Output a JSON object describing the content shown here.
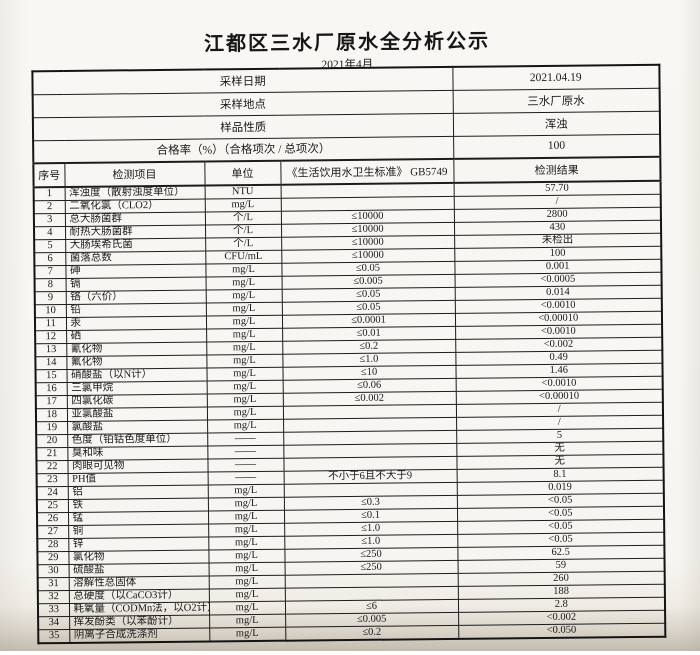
{
  "title": "江都区三水厂原水全分析公示",
  "subtitle": "2021年4月",
  "info_rows": [
    {
      "label": "采样日期",
      "value": "2021.04.19"
    },
    {
      "label": "采样地点",
      "value": "三水厂原水"
    },
    {
      "label": "样品性质",
      "value": "浑浊"
    },
    {
      "label": "合格率（%）（合格项次 / 总项次）",
      "value": "100"
    }
  ],
  "columns": [
    "序号",
    "检测项目",
    "单位",
    "《生活饮用水卫生标准》 GB5749",
    "检测结果"
  ],
  "rows": [
    [
      "1",
      "浑浊度（散射浊度单位）",
      "NTU",
      "",
      "57.70"
    ],
    [
      "2",
      "二氧化氯（CLO2）",
      "mg/L",
      "",
      "/"
    ],
    [
      "3",
      "总大肠菌群",
      "个/L",
      "≤10000",
      "2800"
    ],
    [
      "4",
      "耐热大肠菌群",
      "个/L",
      "≤10000",
      "430"
    ],
    [
      "5",
      "大肠埃希氏菌",
      "个/L",
      "≤10000",
      "未检出"
    ],
    [
      "6",
      "菌落总数",
      "CFU/mL",
      "≤10000",
      "100"
    ],
    [
      "7",
      "砷",
      "mg/L",
      "≤0.05",
      "0.001"
    ],
    [
      "8",
      "镉",
      "mg/L",
      "≤0.005",
      "<0.0005"
    ],
    [
      "9",
      "铬（六价）",
      "mg/L",
      "≤0.05",
      "0.014"
    ],
    [
      "10",
      "铅",
      "mg/L",
      "≤0.05",
      "<0.0010"
    ],
    [
      "11",
      "汞",
      "mg/L",
      "≤0.0001",
      "<0.00010"
    ],
    [
      "12",
      "硒",
      "mg/L",
      "≤0.01",
      "<0.0010"
    ],
    [
      "13",
      "氰化物",
      "mg/L",
      "≤0.2",
      "<0.002"
    ],
    [
      "14",
      "氟化物",
      "mg/L",
      "≤1.0",
      "0.49"
    ],
    [
      "15",
      "硝酸盐（以N计）",
      "mg/L",
      "≤10",
      "1.46"
    ],
    [
      "16",
      "三氯甲烷",
      "mg/L",
      "≤0.06",
      "<0.0010"
    ],
    [
      "17",
      "四氯化碳",
      "mg/L",
      "≤0.002",
      "<0.00010"
    ],
    [
      "18",
      "亚氯酸盐",
      "mg/L",
      "",
      "/"
    ],
    [
      "19",
      "氯酸盐",
      "mg/L",
      "",
      "/"
    ],
    [
      "20",
      "色度（铂钴色度单位）",
      "——",
      "",
      "5"
    ],
    [
      "21",
      "臭和味",
      "——",
      "",
      "无"
    ],
    [
      "22",
      "肉眼可见物",
      "——",
      "",
      "无"
    ],
    [
      "23",
      "PH值",
      "——",
      "不小于6且不大于9",
      "8.1"
    ],
    [
      "24",
      "铝",
      "mg/L",
      "",
      "0.019"
    ],
    [
      "25",
      "铁",
      "mg/L",
      "≤0.3",
      "<0.05"
    ],
    [
      "26",
      "锰",
      "mg/L",
      "≤0.1",
      "<0.05"
    ],
    [
      "27",
      "铜",
      "mg/L",
      "≤1.0",
      "<0.05"
    ],
    [
      "28",
      "锌",
      "mg/L",
      "≤1.0",
      "<0.05"
    ],
    [
      "29",
      "氯化物",
      "mg/L",
      "≤250",
      "62.5"
    ],
    [
      "30",
      "硫酸盐",
      "mg/L",
      "≤250",
      "59"
    ],
    [
      "31",
      "溶解性总固体",
      "mg/L",
      "",
      "260"
    ],
    [
      "32",
      "总硬度（以CaCO3计）",
      "mg/L",
      "",
      "188"
    ],
    [
      "33",
      "耗氧量（CODMn法，以O2计）",
      "mg/L",
      "≤6",
      "2.8"
    ],
    [
      "34",
      "挥发酚类（以苯酚计）",
      "mg/L",
      "≤0.005",
      "<0.002"
    ],
    [
      "35",
      "阴离子合成洗涤剂",
      "mg/L",
      "≤0.2",
      "<0.050"
    ]
  ],
  "colors": {
    "paper": "#f7f5f1",
    "ink": "#1a1a1a",
    "scan_edge": "#c3bcb0"
  }
}
